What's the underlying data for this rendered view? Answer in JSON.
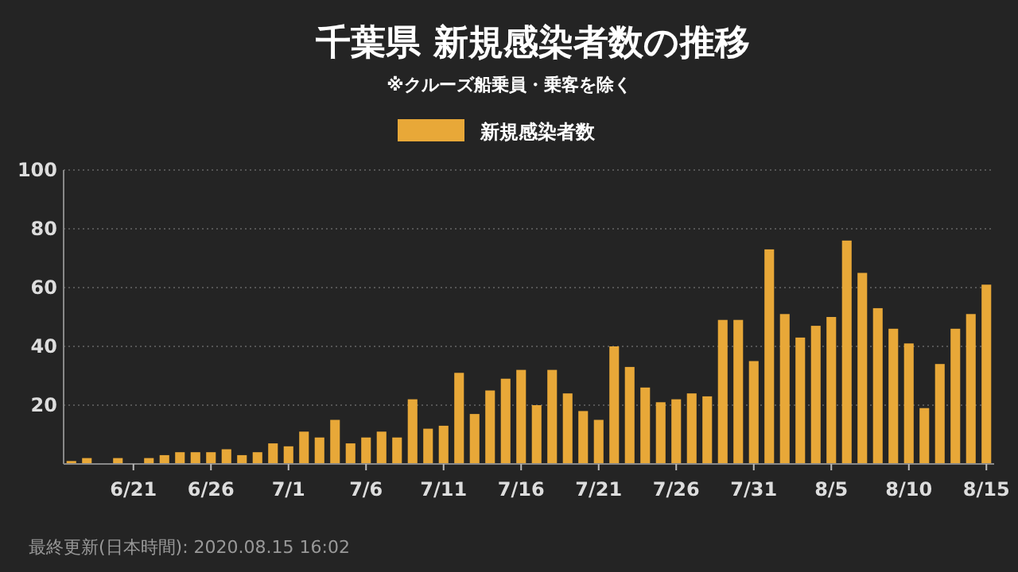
{
  "chart_data": {
    "type": "bar",
    "title": "千葉県 新規感染者数の推移",
    "subtitle": "※クルーズ船乗員・乗客を除く",
    "categories": [
      null,
      null,
      null,
      null,
      "6/21",
      null,
      null,
      null,
      null,
      "6/26",
      null,
      null,
      null,
      null,
      "7/1",
      null,
      null,
      null,
      null,
      "7/6",
      null,
      null,
      null,
      null,
      "7/11",
      null,
      null,
      null,
      null,
      "7/16",
      null,
      null,
      null,
      null,
      "7/21",
      null,
      null,
      null,
      null,
      "7/26",
      null,
      null,
      null,
      null,
      "7/31",
      null,
      null,
      null,
      null,
      "8/5",
      null,
      null,
      null,
      null,
      "8/10",
      null,
      null,
      null,
      null,
      "8/15"
    ],
    "series": [
      {
        "name": "新規感染者数",
        "color": "#e8a838",
        "values": [
          1,
          2,
          0,
          2,
          0,
          2,
          3,
          4,
          4,
          4,
          5,
          3,
          4,
          7,
          6,
          11,
          9,
          15,
          7,
          9,
          11,
          9,
          22,
          12,
          13,
          31,
          17,
          25,
          29,
          32,
          20,
          32,
          24,
          18,
          15,
          40,
          33,
          26,
          21,
          22,
          24,
          23,
          49,
          49,
          35,
          73,
          51,
          43,
          47,
          50,
          76,
          65,
          53,
          46,
          41,
          19,
          34,
          46,
          51,
          61
        ]
      }
    ],
    "ylim": [
      0,
      100
    ],
    "yticks": [
      20,
      40,
      60,
      80,
      100
    ],
    "grid": "y",
    "legend": "top",
    "annotations": [
      "最終更新(日本時間): 2020.08.15 16:02"
    ]
  }
}
